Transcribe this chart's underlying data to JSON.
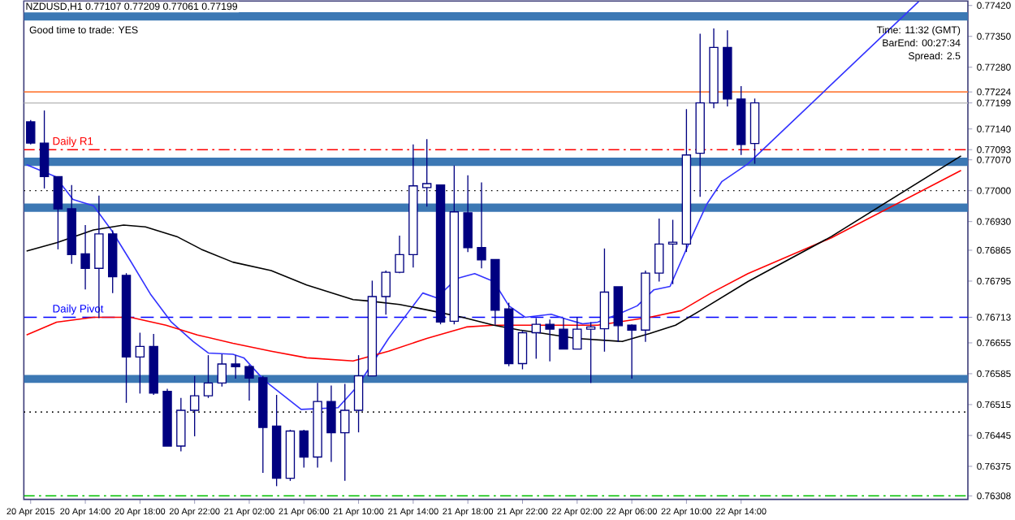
{
  "chart_data": {
    "type": "candlestick",
    "title": "NZDUSD,H1  0.77107 0.77209 0.77061 0.77199",
    "annotations": [
      "Good time to trade: YES",
      "Time: 11:32 (GMT)",
      "BarEnd: 00:27:34",
      "Spread: 2.5"
    ],
    "x": [
      "2015-04-20T10:00",
      "2015-04-20T11:00",
      "2015-04-20T12:00",
      "2015-04-20T13:00",
      "2015-04-20T14:00",
      "2015-04-20T15:00",
      "2015-04-20T16:00",
      "2015-04-20T17:00",
      "2015-04-20T18:00",
      "2015-04-20T19:00",
      "2015-04-20T20:00",
      "2015-04-20T21:00",
      "2015-04-20T22:00",
      "2015-04-20T23:00",
      "2015-04-21T00:00",
      "2015-04-21T01:00",
      "2015-04-21T02:00",
      "2015-04-21T03:00",
      "2015-04-21T04:00",
      "2015-04-21T05:00",
      "2015-04-21T06:00",
      "2015-04-21T07:00",
      "2015-04-21T08:00",
      "2015-04-21T09:00",
      "2015-04-21T10:00",
      "2015-04-21T11:00",
      "2015-04-21T12:00",
      "2015-04-21T13:00",
      "2015-04-21T14:00",
      "2015-04-21T15:00",
      "2015-04-21T16:00",
      "2015-04-21T17:00",
      "2015-04-21T18:00",
      "2015-04-21T19:00",
      "2015-04-21T20:00",
      "2015-04-21T21:00",
      "2015-04-21T22:00",
      "2015-04-21T23:00",
      "2015-04-22T00:00",
      "2015-04-22T01:00",
      "2015-04-22T02:00",
      "2015-04-22T03:00",
      "2015-04-22T04:00",
      "2015-04-22T05:00",
      "2015-04-22T06:00",
      "2015-04-22T07:00",
      "2015-04-22T08:00",
      "2015-04-22T09:00",
      "2015-04-22T10:00",
      "2015-04-22T11:00",
      "2015-04-22T12:00",
      "2015-04-22T13:00",
      "2015-04-22T14:00",
      "2015-04-22T15:00"
    ],
    "ohlc": [
      [
        0.77156,
        0.7716,
        0.77105,
        0.77108
      ],
      [
        0.77108,
        0.77182,
        0.77005,
        0.77032
      ],
      [
        0.77032,
        0.77032,
        0.76867,
        0.76959
      ],
      [
        0.76959,
        0.77013,
        0.76834,
        0.76855
      ],
      [
        0.76857,
        0.76922,
        0.76776,
        0.76824
      ],
      [
        0.76824,
        0.76989,
        0.76711,
        0.76902
      ],
      [
        0.76902,
        0.7691,
        0.76768,
        0.76805
      ],
      [
        0.76808,
        0.76813,
        0.76519,
        0.76623
      ],
      [
        0.76623,
        0.76678,
        0.7654,
        0.76647
      ],
      [
        0.76647,
        0.76675,
        0.76537,
        0.76541
      ],
      [
        0.76545,
        0.76551,
        0.76421,
        0.76421
      ],
      [
        0.76421,
        0.7653,
        0.76409,
        0.76502
      ],
      [
        0.76502,
        0.7658,
        0.76443,
        0.76535
      ],
      [
        0.76535,
        0.76627,
        0.7653,
        0.76564
      ],
      [
        0.76564,
        0.76629,
        0.76556,
        0.76607
      ],
      [
        0.76607,
        0.76627,
        0.76574,
        0.76601
      ],
      [
        0.76601,
        0.76605,
        0.76524,
        0.76575
      ],
      [
        0.76576,
        0.7658,
        0.7636,
        0.76463
      ],
      [
        0.76466,
        0.76537,
        0.7633,
        0.76348
      ],
      [
        0.76348,
        0.76458,
        0.76342,
        0.76455
      ],
      [
        0.76455,
        0.76458,
        0.76372,
        0.76396
      ],
      [
        0.76396,
        0.76564,
        0.76372,
        0.76522
      ],
      [
        0.76522,
        0.76558,
        0.76385,
        0.76451
      ],
      [
        0.76451,
        0.76562,
        0.76342,
        0.76502
      ],
      [
        0.76502,
        0.76627,
        0.76452,
        0.7658
      ],
      [
        0.7658,
        0.76796,
        0.7658,
        0.7676
      ],
      [
        0.7676,
        0.76819,
        0.76719,
        0.76815
      ],
      [
        0.76815,
        0.76898,
        0.76813,
        0.76855
      ],
      [
        0.76855,
        0.77105,
        0.76826,
        0.77011
      ],
      [
        0.77007,
        0.77117,
        0.76964,
        0.77016
      ],
      [
        0.77013,
        0.77013,
        0.76697,
        0.76702
      ],
      [
        0.76704,
        0.77057,
        0.76697,
        0.76952
      ],
      [
        0.7695,
        0.77035,
        0.76861,
        0.76871
      ],
      [
        0.76871,
        0.77019,
        0.76824,
        0.76843
      ],
      [
        0.76844,
        0.76844,
        0.76696,
        0.76729
      ],
      [
        0.76732,
        0.76746,
        0.76602,
        0.76608
      ],
      [
        0.76608,
        0.76682,
        0.76595,
        0.76678
      ],
      [
        0.76678,
        0.76711,
        0.76619,
        0.76697
      ],
      [
        0.76697,
        0.76708,
        0.76613,
        0.76686
      ],
      [
        0.76686,
        0.76711,
        0.76641,
        0.76641
      ],
      [
        0.76641,
        0.76713,
        0.76641,
        0.76686
      ],
      [
        0.76686,
        0.76702,
        0.76564,
        0.76691
      ],
      [
        0.76687,
        0.76869,
        0.76635,
        0.7677
      ],
      [
        0.76782,
        0.76782,
        0.76657,
        0.76694
      ],
      [
        0.76695,
        0.76697,
        0.76574,
        0.76684
      ],
      [
        0.76684,
        0.76819,
        0.76657,
        0.76813
      ],
      [
        0.76813,
        0.76937,
        0.76794,
        0.76879
      ],
      [
        0.76879,
        0.76934,
        0.76788,
        0.76883
      ],
      [
        0.76879,
        0.77185,
        0.76861,
        0.77081
      ],
      [
        0.77085,
        0.77356,
        0.76986,
        0.77199
      ],
      [
        0.77199,
        0.77368,
        0.77187,
        0.77325
      ],
      [
        0.77325,
        0.77364,
        0.77191,
        0.77208
      ],
      [
        0.77208,
        0.77237,
        0.77081,
        0.77105
      ],
      [
        0.77107,
        0.77209,
        0.77061,
        0.77199
      ]
    ],
    "color": "#000080",
    "series": [
      {
        "type": "line",
        "color": "#3333ff",
        "x": [
          "2015-04-20T09:42",
          "2015-04-20T11:48",
          "2015-04-20T13:06",
          "2015-04-20T14:36",
          "2015-04-20T15:54",
          "2015-04-20T17:18",
          "2015-04-20T18:48",
          "2015-04-20T20:18",
          "2015-04-20T21:54",
          "2015-04-20T23:00",
          "2015-04-21T00:48",
          "2015-04-21T01:36",
          "2015-04-21T03:06",
          "2015-04-21T05:48",
          "2015-04-21T08:30",
          "2015-04-21T09:54",
          "2015-04-21T12:12",
          "2015-04-21T14:42",
          "2015-04-21T15:42",
          "2015-04-21T17:12",
          "2015-04-21T18:30",
          "2015-04-21T19:54",
          "2015-04-21T21:00",
          "2015-04-21T22:12",
          "2015-04-22T00:06",
          "2015-04-22T01:12",
          "2015-04-22T02:24",
          "2015-04-22T03:30",
          "2015-04-22T05:00",
          "2015-04-22T06:24",
          "2015-04-22T07:36",
          "2015-04-22T08:48",
          "2015-04-22T10:24",
          "2015-04-22T11:30",
          "2015-04-22T12:36",
          "2015-04-22T14:30",
          "2015-04-23T03:00"
        ],
        "values": [
          0.77059,
          0.77032,
          0.7698,
          0.76966,
          0.76911,
          0.76841,
          0.76764,
          0.76702,
          0.76658,
          0.76632,
          0.76629,
          0.76621,
          0.7657,
          0.76504,
          0.76508,
          0.76556,
          0.76665,
          0.76768,
          0.76757,
          0.76801,
          0.76812,
          0.76794,
          0.76739,
          0.76713,
          0.7672,
          0.76709,
          0.76698,
          0.76702,
          0.7672,
          0.76739,
          0.76775,
          0.76783,
          0.76896,
          0.7697,
          0.77021,
          0.77061,
          0.77429
        ]
      },
      {
        "type": "line",
        "color": "#ff0000",
        "x": [
          "2015-04-20T09:42",
          "2015-04-20T11:54",
          "2015-04-20T14:36",
          "2015-04-20T17:18",
          "2015-04-20T19:54",
          "2015-04-20T22:12",
          "2015-04-21T00:48",
          "2015-04-21T03:36",
          "2015-04-21T06:12",
          "2015-04-21T09:36",
          "2015-04-21T12:12",
          "2015-04-21T15:00",
          "2015-04-21T17:54",
          "2015-04-21T19:54",
          "2015-04-21T23:36",
          "2015-04-22T03:30",
          "2015-04-22T07:18",
          "2015-04-22T09:36",
          "2015-04-22T11:48",
          "2015-04-22T14:30",
          "2015-04-22T20:36",
          "2015-04-23T06:06"
        ],
        "values": [
          0.76673,
          0.76702,
          0.76713,
          0.76713,
          0.76695,
          0.76673,
          0.76654,
          0.76636,
          0.76621,
          0.76614,
          0.76636,
          0.76665,
          0.76691,
          0.76695,
          0.76695,
          0.76695,
          0.76713,
          0.76728,
          0.76768,
          0.76812,
          0.76893,
          0.77046
        ]
      },
      {
        "type": "line",
        "color": "#000000",
        "x": [
          "2015-04-20T09:42",
          "2015-04-20T11:54",
          "2015-04-20T14:36",
          "2015-04-20T16:48",
          "2015-04-20T18:24",
          "2015-04-20T20:42",
          "2015-04-20T22:30",
          "2015-04-21T00:48",
          "2015-04-21T03:36",
          "2015-04-21T06:12",
          "2015-04-21T09:36",
          "2015-04-21T10:42",
          "2015-04-21T13:00",
          "2015-04-21T15:18",
          "2015-04-21T17:36",
          "2015-04-21T19:54",
          "2015-04-21T21:48",
          "2015-04-21T23:36",
          "2015-04-22T01:54",
          "2015-04-22T05:18",
          "2015-04-22T07:18",
          "2015-04-22T09:12",
          "2015-04-22T11:00",
          "2015-04-22T14:30",
          "2015-04-22T20:36",
          "2015-04-23T06:06"
        ],
        "values": [
          0.76863,
          0.76882,
          0.76911,
          0.76922,
          0.76918,
          0.76896,
          0.76867,
          0.76838,
          0.76819,
          0.76786,
          0.76753,
          0.7675,
          0.76742,
          0.76728,
          0.76713,
          0.76695,
          0.76684,
          0.76676,
          0.76665,
          0.76658,
          0.76676,
          0.76695,
          0.76728,
          0.76794,
          0.76896,
          0.77079
        ]
      }
    ],
    "xlim": [
      "2015-04-20T09:30",
      "2015-04-23T06:36"
    ],
    "ylim": [
      0.763,
      0.7743
    ],
    "xticks": [
      {
        "value": "2015-04-20T10:00",
        "label": "20 Apr 2015"
      },
      {
        "value": "2015-04-20T14:00",
        "label": "20 Apr 14:00"
      },
      {
        "value": "2015-04-20T18:00",
        "label": "20 Apr 18:00"
      },
      {
        "value": "2015-04-20T22:00",
        "label": "20 Apr 22:00"
      },
      {
        "value": "2015-04-21T02:00",
        "label": "21 Apr 02:00"
      },
      {
        "value": "2015-04-21T06:00",
        "label": "21 Apr 06:00"
      },
      {
        "value": "2015-04-21T10:00",
        "label": "21 Apr 10:00"
      },
      {
        "value": "2015-04-21T14:00",
        "label": "21 Apr 14:00"
      },
      {
        "value": "2015-04-21T18:00",
        "label": "21 Apr 18:00"
      },
      {
        "value": "2015-04-21T22:00",
        "label": "21 Apr 22:00"
      },
      {
        "value": "2015-04-22T02:00",
        "label": "22 Apr 02:00"
      },
      {
        "value": "2015-04-22T06:00",
        "label": "22 Apr 06:00"
      },
      {
        "value": "2015-04-22T10:00",
        "label": "22 Apr 10:00"
      },
      {
        "value": "2015-04-22T14:00",
        "label": "22 Apr 14:00"
      }
    ],
    "yticks": [
      {
        "value": 0.7742,
        "label": "0.77420"
      },
      {
        "value": 0.7735,
        "label": "0.77350"
      },
      {
        "value": 0.7728,
        "label": "0.77280"
      },
      0.77224,
      0.77199,
      {
        "value": 0.7714,
        "label": "0.77140"
      },
      0.77093,
      {
        "value": 0.7707,
        "label": "0.77070"
      },
      {
        "value": 0.77,
        "label": "0.77000"
      },
      {
        "value": 0.7693,
        "label": "0.76930"
      },
      0.76865,
      0.76795,
      0.76713,
      0.76655,
      0.76585,
      0.76515,
      0.76445,
      0.76375,
      0.76308
    ],
    "bands": [
      {
        "axis": "y",
        "from": 0.77386,
        "to": 0.77405,
        "color": "#3c78b4"
      },
      {
        "axis": "y",
        "from": 0.77056,
        "to": 0.77075,
        "color": "#3c78b4"
      },
      {
        "axis": "y",
        "from": 0.76952,
        "to": 0.76971,
        "color": "#3c78b4"
      },
      {
        "axis": "y",
        "from": 0.76564,
        "to": 0.76582,
        "color": "#3c78b4"
      }
    ],
    "ref_lines": [
      {
        "axis": "y",
        "value": 0.77224,
        "color": "#ff8040",
        "line_style": "solid"
      },
      {
        "axis": "y",
        "value": 0.77199,
        "color": "#c0c0c0",
        "line_style": "solid"
      },
      {
        "axis": "y",
        "value": 0.77093,
        "label": "Daily R1",
        "color": "#ff0000",
        "line_style": "dashdot"
      },
      {
        "axis": "y",
        "value": 0.77,
        "color": "#000000",
        "line_style": "dotted"
      },
      {
        "axis": "y",
        "value": 0.76713,
        "label": "Daily Pivot",
        "color": "#0000ff",
        "line_style": "dashed"
      },
      {
        "axis": "y",
        "value": 0.76498,
        "color": "#000000",
        "line_style": "dotted"
      },
      {
        "axis": "y",
        "value": 0.76308,
        "color": "#00c000",
        "line_style": "dashdot"
      }
    ]
  }
}
